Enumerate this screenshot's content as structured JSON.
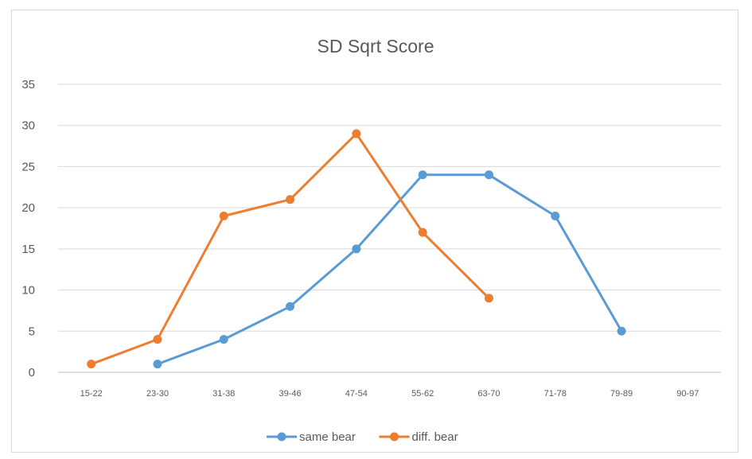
{
  "chart_data": {
    "type": "line",
    "title": "SD  Sqrt Score",
    "xlabel": "",
    "ylabel": "",
    "categories": [
      "15-22",
      "23-30",
      "31-38",
      "39-46",
      "47-54",
      "55-62",
      "63-70",
      "71-78",
      "79-89",
      "90-97"
    ],
    "ylim": [
      0,
      35
    ],
    "yticks": [
      0,
      5,
      10,
      15,
      20,
      25,
      30,
      35
    ],
    "grid": true,
    "legend_position": "bottom",
    "series": [
      {
        "name": "same bear",
        "color": "#5b9bd5",
        "values": [
          null,
          1,
          4,
          8,
          15,
          24,
          24,
          19,
          5,
          null
        ]
      },
      {
        "name": "diff. bear",
        "color": "#ed7d31",
        "values": [
          1,
          4,
          19,
          21,
          29,
          17,
          9,
          null,
          null,
          null
        ]
      }
    ]
  }
}
